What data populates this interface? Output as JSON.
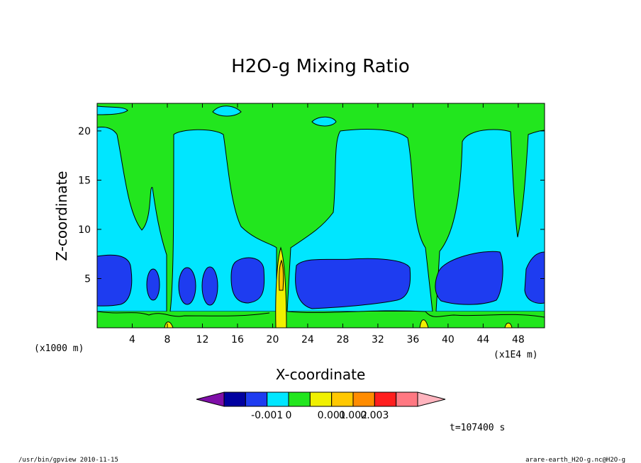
{
  "chart_data": {
    "type": "heatmap",
    "title": "H2O-g Mixing Ratio",
    "xlabel": "X-coordinate",
    "ylabel": "Z-coordinate",
    "x_unit_label": "(x1E4 m)",
    "y_unit_label": "(x1000 m)",
    "xlim": [
      0,
      51
    ],
    "ylim": [
      0,
      22.8
    ],
    "x_ticks": [
      4,
      8,
      12,
      16,
      20,
      24,
      28,
      32,
      36,
      40,
      44,
      48
    ],
    "y_ticks": [
      5,
      10,
      15,
      20
    ],
    "colorbar": {
      "orientation": "horizontal",
      "tick_labels": [
        "-0.001",
        "0",
        "0.001",
        "0.002",
        "0.003"
      ],
      "colors": [
        "#7f0fa8",
        "#0000a0",
        "#1e3cf0",
        "#00e6ff",
        "#22e61e",
        "#f0f000",
        "#ffc800",
        "#ff8c00",
        "#ff1e1e",
        "#ff7882",
        "#ffb4be"
      ]
    },
    "field_colors": {
      "bottom": "#22e61e",
      "lower": "#00e6ff",
      "core": "#1e3cf0",
      "plume": "#f0f000",
      "plume_peak": "#ffc800",
      "upper": "#22e61e"
    },
    "time_label": "t=107400 s",
    "footer_left": "/usr/bin/gpview   2010-11-15",
    "footer_right": "arare-earth_H2O-g.nc@H2O-g"
  }
}
